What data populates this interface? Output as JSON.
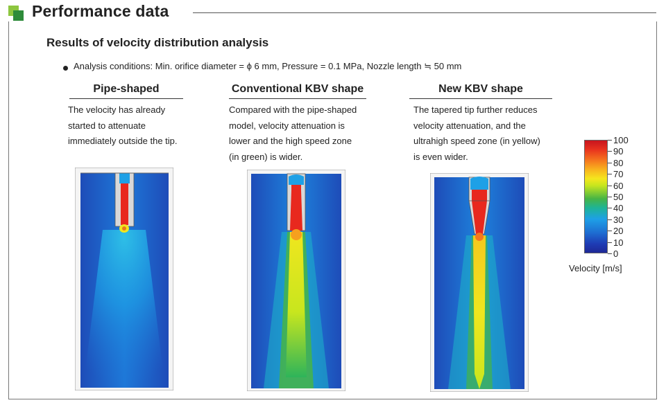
{
  "header": {
    "title": "Performance data"
  },
  "section": {
    "subtitle": "Results of velocity distribution analysis",
    "conditions": "Analysis conditions: Min. orifice diameter = ϕ 6 mm, Pressure = 0.1 MPa, Nozzle length ≒ 50 mm"
  },
  "columns": [
    {
      "title": "Pipe-shaped",
      "lines": [
        "The velocity has already",
        "started to attenuate",
        "immediately outside the tip."
      ]
    },
    {
      "title": "Conventional KBV shape",
      "lines": [
        "Compared with the pipe-shaped",
        "model, velocity attenuation is",
        "lower and the high speed zone",
        "(in green) is wider."
      ]
    },
    {
      "title": "New KBV shape",
      "lines": [
        "The tapered tip further reduces",
        "velocity attenuation, and the",
        "ultrahigh speed zone (in yellow)",
        "is even wider."
      ]
    }
  ],
  "scale": {
    "labels": [
      "100",
      "90",
      "80",
      "70",
      "60",
      "50",
      "40",
      "30",
      "20",
      "10",
      "0"
    ],
    "unit": "Velocity [m/s]"
  },
  "colors": {
    "accent_light": "#8dc63f",
    "accent_dark": "#2e8b3a",
    "jet_red": "#e8281e",
    "jet_yellow": "#f0e61e",
    "field_blue": "#1e6ed2"
  }
}
